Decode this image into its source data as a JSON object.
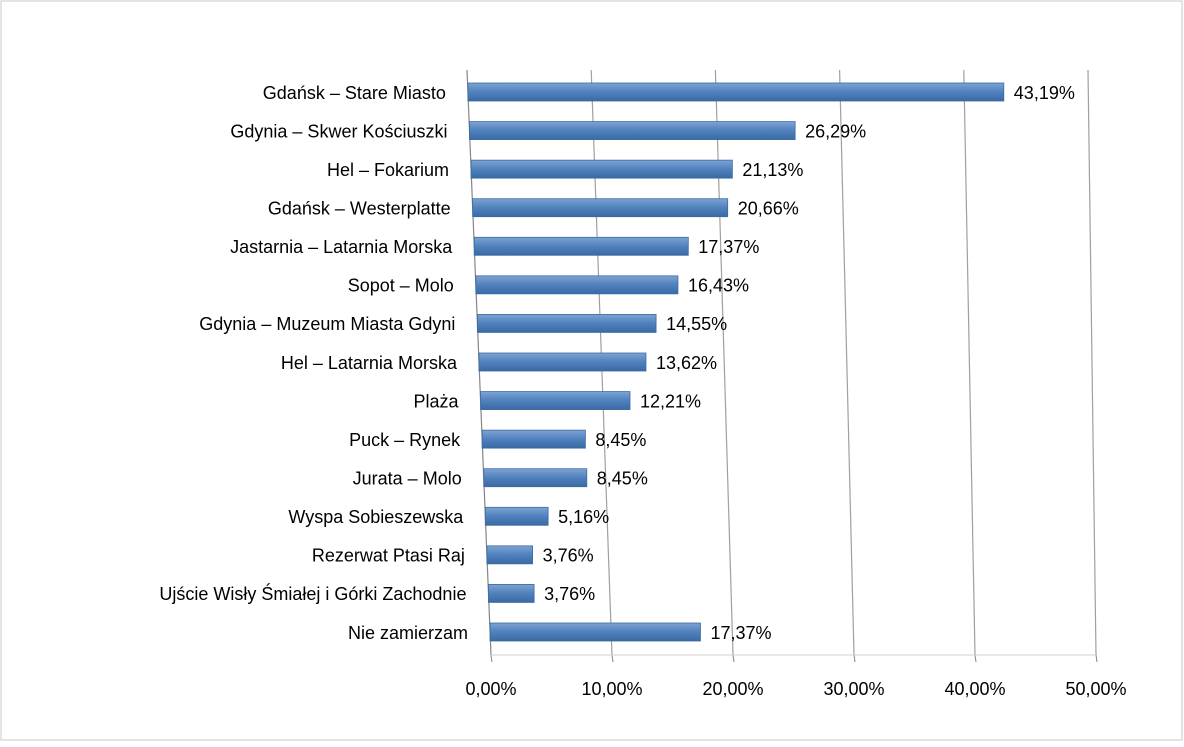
{
  "chart_data": {
    "type": "bar",
    "orientation": "horizontal",
    "categories": [
      "Gdańsk – Stare Miasto",
      "Gdynia – Skwer Kościuszki",
      "Hel – Fokarium",
      "Gdańsk – Westerplatte",
      "Jastarnia – Latarnia Morska",
      "Sopot – Molo",
      "Gdynia – Muzeum Miasta Gdyni",
      "Hel – Latarnia Morska",
      "Plaża",
      "Puck – Rynek",
      "Jurata – Molo",
      "Wyspa Sobieszewska",
      "Rezerwat Ptasi Raj",
      "Ujście Wisły Śmiałej i Górki Zachodnie",
      "Nie zamierzam"
    ],
    "values": [
      43.19,
      26.29,
      21.13,
      20.66,
      17.37,
      16.43,
      14.55,
      13.62,
      12.21,
      8.45,
      8.45,
      5.16,
      3.76,
      3.76,
      17.37
    ],
    "value_labels": [
      "43,19%",
      "26,29%",
      "21,13%",
      "20,66%",
      "17,37%",
      "16,43%",
      "14,55%",
      "13,62%",
      "12,21%",
      "8,45%",
      "8,45%",
      "5,16%",
      "3,76%",
      "3,76%",
      "17,37%"
    ],
    "color": "#4f81bd",
    "xlim": [
      0,
      50
    ],
    "xticks": [
      {
        "value": 0,
        "label": "0,00%"
      },
      {
        "value": 10,
        "label": "10,00%"
      },
      {
        "value": 20,
        "label": "20,00%"
      },
      {
        "value": 30,
        "label": "30,00%"
      },
      {
        "value": 40,
        "label": "40,00%"
      },
      {
        "value": 50,
        "label": "50,00%"
      }
    ],
    "grid": true
  }
}
